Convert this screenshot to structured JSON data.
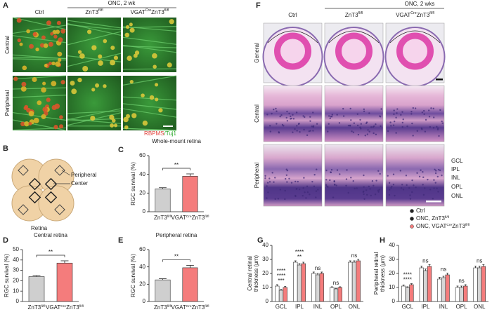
{
  "figure": {
    "letters": [
      "A",
      "B",
      "C",
      "D",
      "E",
      "F",
      "G",
      "H"
    ],
    "A": {
      "group_header": "ONC, 2 wk",
      "columns": [
        [
          {
            "text": "Ctrl"
          }
        ],
        [
          {
            "text": "ZnT3"
          },
          {
            "text": "fl/fl",
            "sup": true
          }
        ],
        [
          {
            "text": "VGAT"
          },
          {
            "text": "Cre",
            "sup": true
          },
          {
            "text": "ZnT3"
          },
          {
            "text": "fl/fl",
            "sup": true
          }
        ]
      ],
      "rows": [
        "Central",
        "Peripheral"
      ],
      "stain": [
        {
          "text": "RBPMS",
          "color": "#e0403a"
        },
        {
          "text": "/Tuj1",
          "color": "#2aa82a"
        }
      ]
    },
    "B": {
      "labels": [
        "Peripheral",
        "Center",
        "Retina"
      ]
    },
    "F": {
      "group_header": "ONC, 2 wks",
      "columns": [
        [
          {
            "text": "Ctrl"
          }
        ],
        [
          {
            "text": "ZnT3"
          },
          {
            "text": "fl/fl",
            "sup": true
          }
        ],
        [
          {
            "text": "VGAT"
          },
          {
            "text": "Cre",
            "sup": true
          },
          {
            "text": "ZnT3"
          },
          {
            "text": "fl/fl",
            "sup": true
          }
        ]
      ],
      "rows": [
        "General",
        "Central",
        "Peripheral"
      ],
      "layers": [
        "GCL",
        "IPL",
        "INL",
        "OPL",
        "ONL"
      ]
    }
  },
  "chart_data": [
    {
      "type": "bar",
      "panel": "C",
      "title": "Whole-mount retina",
      "y_label": "RGC survival (%)",
      "categories": [
        [
          {
            "text": "ZnT3"
          },
          {
            "text": "fl/fl",
            "sup": true
          }
        ],
        [
          {
            "text": "VGAT"
          },
          {
            "text": "Cre",
            "sup": true
          },
          {
            "text": "ZnT3"
          },
          {
            "text": "fl/fl",
            "sup": true
          }
        ]
      ],
      "values": [
        24.5,
        38
      ],
      "errors": [
        1.2,
        2.5
      ],
      "colors": [
        "#cfcfcf",
        "#f47c7c"
      ],
      "ylim": [
        0,
        60
      ],
      "yticks": [
        0,
        20,
        40,
        60
      ],
      "significance": "**"
    },
    {
      "type": "bar",
      "panel": "D",
      "title": "Central retina",
      "y_label": "RGC survival (%)",
      "categories": [
        [
          {
            "text": "ZnT3"
          },
          {
            "text": "fl/fl",
            "sup": true
          }
        ],
        [
          {
            "text": "VGAT"
          },
          {
            "text": "Cre",
            "sup": true
          },
          {
            "text": "ZnT3"
          },
          {
            "text": "fl/fl",
            "sup": true
          }
        ]
      ],
      "values": [
        24,
        37
      ],
      "errors": [
        1,
        2.2
      ],
      "colors": [
        "#cfcfcf",
        "#f47c7c"
      ],
      "ylim": [
        0,
        50
      ],
      "yticks": [
        0,
        10,
        20,
        30,
        40,
        50
      ],
      "significance": "**"
    },
    {
      "type": "bar",
      "panel": "E",
      "title": "Peripheral retina",
      "y_label": "RGC survival (%)",
      "categories": [
        [
          {
            "text": "ZnT3"
          },
          {
            "text": "fl/fl",
            "sup": true
          }
        ],
        [
          {
            "text": "VGAT"
          },
          {
            "text": "Cre",
            "sup": true
          },
          {
            "text": "ZnT3"
          },
          {
            "text": "fl/fl",
            "sup": true
          }
        ]
      ],
      "values": [
        25,
        39
      ],
      "errors": [
        1.3,
        2.8
      ],
      "colors": [
        "#cfcfcf",
        "#f47c7c"
      ],
      "ylim": [
        0,
        60
      ],
      "yticks": [
        0,
        20,
        40,
        60
      ],
      "significance": "**"
    },
    {
      "type": "grouped_bar",
      "panel": "G",
      "y_label": [
        "Central retinal",
        "thickness (μm)"
      ],
      "categories": [
        "GCL",
        "IPL",
        "INL",
        "OPL",
        "ONL"
      ],
      "series": [
        {
          "name": [
            {
              "text": "Ctrl"
            }
          ],
          "color": "#ffffff",
          "values": [
            11,
            28,
            20,
            10,
            28
          ],
          "errors": [
            1,
            1,
            1,
            0.5,
            1
          ]
        },
        {
          "name": [
            {
              "text": "ONC, ZnT3"
            },
            {
              "text": "fl/fl",
              "sup": true
            }
          ],
          "color": "#d6d6d6",
          "values": [
            8,
            26,
            19,
            9,
            28
          ],
          "errors": [
            0.6,
            1,
            1,
            0.5,
            1
          ]
        },
        {
          "name": [
            {
              "text": "ONC, VGAT"
            },
            {
              "text": "Cre",
              "sup": true
            },
            {
              "text": "ZnT3"
            },
            {
              "text": "fl/fl",
              "sup": true
            }
          ],
          "color": "#f47c7c",
          "values": [
            10,
            27,
            20,
            10,
            29
          ],
          "errors": [
            0.7,
            1,
            1,
            0.5,
            1
          ]
        }
      ],
      "ylim": [
        0,
        40
      ],
      "yticks": [
        0,
        10,
        20,
        30,
        40
      ],
      "significance": [
        [
          "***",
          "****",
          "****"
        ],
        [
          "**",
          "****"
        ],
        [
          "ns"
        ],
        [
          "ns"
        ],
        [
          "ns"
        ]
      ],
      "legend": false
    },
    {
      "type": "grouped_bar",
      "panel": "H",
      "y_label": [
        "Peripheral retinal",
        "thickness (μm)"
      ],
      "categories": [
        "GCL",
        "IPL",
        "INL",
        "OPL",
        "ONL"
      ],
      "series": [
        {
          "name": [
            {
              "text": "Ctrl"
            }
          ],
          "color": "#ffffff",
          "values": [
            11,
            24,
            16,
            10,
            24
          ],
          "errors": [
            0.8,
            1.2,
            1.2,
            1,
            1.2
          ]
        },
        {
          "name": [
            {
              "text": "ONC, ZnT3"
            },
            {
              "text": "fl/fl",
              "sup": true
            }
          ],
          "color": "#d6d6d6",
          "values": [
            10,
            22,
            17,
            10,
            24
          ],
          "errors": [
            0.5,
            1.2,
            1,
            1,
            1.2
          ]
        },
        {
          "name": [
            {
              "text": "ONC, VGAT"
            },
            {
              "text": "Cre",
              "sup": true
            },
            {
              "text": "ZnT3"
            },
            {
              "text": "fl/fl",
              "sup": true
            }
          ],
          "color": "#f47c7c",
          "values": [
            12,
            25,
            19,
            11,
            25
          ],
          "errors": [
            0.7,
            1.2,
            1.2,
            1,
            1.2
          ]
        }
      ],
      "ylim": [
        0,
        40
      ],
      "yticks": [
        0,
        10,
        20,
        30,
        40
      ],
      "significance": [
        [
          "****",
          "****"
        ],
        [
          "ns"
        ],
        [
          "ns"
        ],
        [
          "ns"
        ],
        [
          "ns"
        ]
      ],
      "legend": true
    }
  ]
}
